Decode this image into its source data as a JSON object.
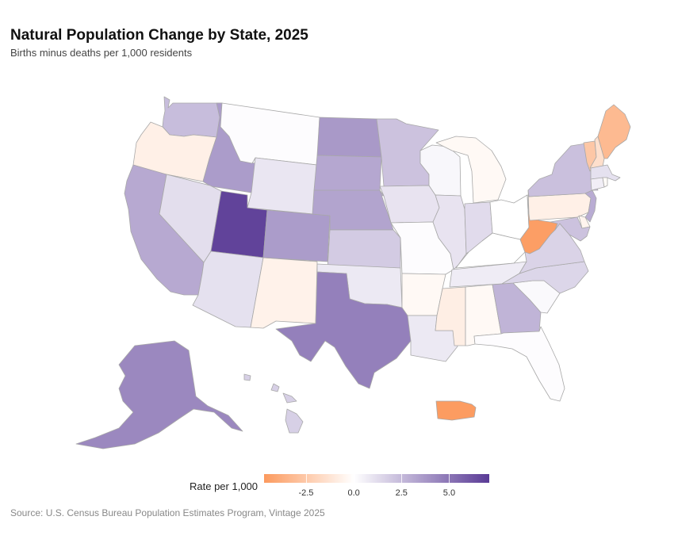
{
  "chart_data": {
    "type": "choropleth",
    "title": "Natural Population Change by State, 2025",
    "subtitle": "Births minus deaths per 1,000 residents",
    "source": "Source: U.S. Census Bureau Population Estimates Program, Vintage 2025",
    "legend": {
      "title": "Rate per 1,000",
      "range": [
        -4.7,
        7.1
      ],
      "ticks": [
        {
          "value": -2.5,
          "label": "-2.5"
        },
        {
          "value": 0,
          "label": "0.0"
        },
        {
          "value": 2.5,
          "label": "2.5"
        },
        {
          "value": 5,
          "label": "5.0"
        }
      ],
      "low_color": "#fc9a5e",
      "mid_color": "#ffffff",
      "high_color": "#5a3b96"
    },
    "regions": [
      {
        "id": "WA",
        "value": 2.4
      },
      {
        "id": "OR",
        "value": -0.7
      },
      {
        "id": "CA",
        "value": 3.1
      },
      {
        "id": "ID",
        "value": 3.6
      },
      {
        "id": "NV",
        "value": 1.2
      },
      {
        "id": "MT",
        "value": 0.1
      },
      {
        "id": "WY",
        "value": 0.9
      },
      {
        "id": "UT",
        "value": 6.8
      },
      {
        "id": "AZ",
        "value": 1.1
      },
      {
        "id": "NM",
        "value": -0.6
      },
      {
        "id": "CO",
        "value": 3.6
      },
      {
        "id": "ND",
        "value": 3.7
      },
      {
        "id": "SD",
        "value": 3.2
      },
      {
        "id": "NE",
        "value": 3.3
      },
      {
        "id": "KS",
        "value": 1.9
      },
      {
        "id": "OK",
        "value": 0.8
      },
      {
        "id": "TX",
        "value": 4.6
      },
      {
        "id": "MN",
        "value": 2.2
      },
      {
        "id": "IA",
        "value": 1.0
      },
      {
        "id": "MO",
        "value": 0.1
      },
      {
        "id": "AR",
        "value": -0.3
      },
      {
        "id": "LA",
        "value": 0.8
      },
      {
        "id": "WI",
        "value": 0.3
      },
      {
        "id": "IL",
        "value": 1.0
      },
      {
        "id": "MI",
        "value": -0.3
      },
      {
        "id": "IN",
        "value": 1.3
      },
      {
        "id": "OH",
        "value": 0.0
      },
      {
        "id": "KY",
        "value": 0.0
      },
      {
        "id": "TN",
        "value": 0.7
      },
      {
        "id": "MS",
        "value": -0.8
      },
      {
        "id": "AL",
        "value": -0.3
      },
      {
        "id": "GA",
        "value": 2.7
      },
      {
        "id": "FL",
        "value": 0.1
      },
      {
        "id": "SC",
        "value": 0.2
      },
      {
        "id": "NC",
        "value": 1.5
      },
      {
        "id": "VA",
        "value": 1.6
      },
      {
        "id": "WV",
        "value": -4.5
      },
      {
        "id": "PA",
        "value": -0.7
      },
      {
        "id": "NY",
        "value": 2.3
      },
      {
        "id": "VT",
        "value": -2.6
      },
      {
        "id": "NH",
        "value": -1.5
      },
      {
        "id": "ME",
        "value": -3.2
      },
      {
        "id": "MA",
        "value": 1.1
      },
      {
        "id": "CT",
        "value": 0.6
      },
      {
        "id": "RI",
        "value": -0.2
      },
      {
        "id": "NJ",
        "value": 3.0
      },
      {
        "id": "DE",
        "value": -0.5
      },
      {
        "id": "MD",
        "value": 2.2
      },
      {
        "id": "AK",
        "value": 4.3
      },
      {
        "id": "HI",
        "value": 1.7
      },
      {
        "id": "PR",
        "value": -4.6
      }
    ]
  }
}
